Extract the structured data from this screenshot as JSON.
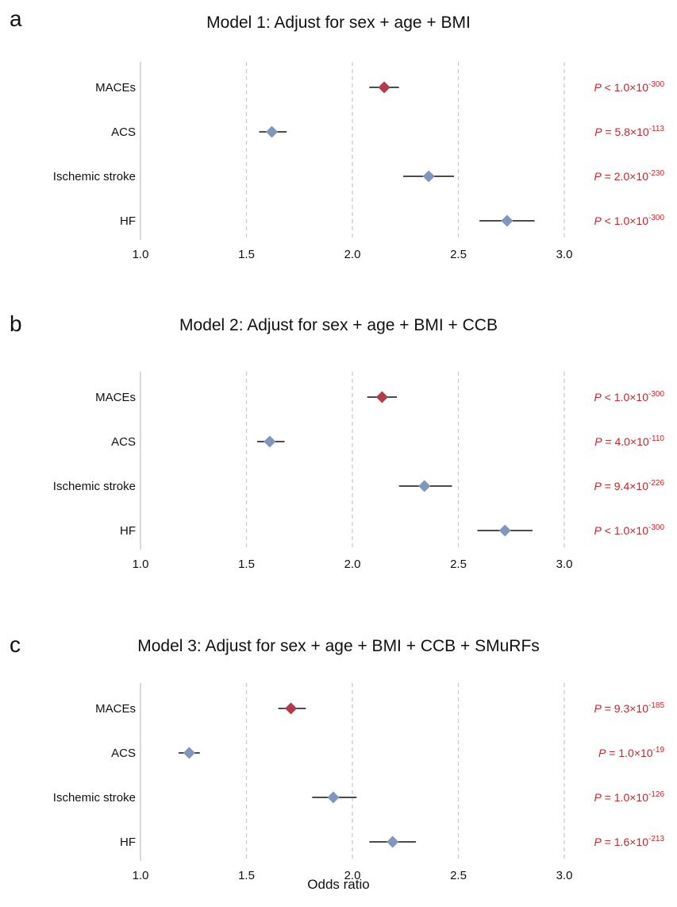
{
  "chart_data": [
    {
      "type": "forest",
      "panel_label": "a",
      "title": "Model 1: Adjust for sex + age + BMI",
      "xlim": [
        1.0,
        3.0
      ],
      "xticks": [
        "1.0",
        "1.5",
        "2.0",
        "2.5",
        "3.0"
      ],
      "grid": "dashed vertical",
      "rows": [
        {
          "label": "MACEs",
          "or": 2.15,
          "ci": [
            2.08,
            2.22
          ],
          "p_prefix": "P",
          "p_op": "<",
          "p_mantissa": "1.0",
          "p_exp": "-300",
          "color": "#b33a4c"
        },
        {
          "label": "ACS",
          "or": 1.62,
          "ci": [
            1.56,
            1.69
          ],
          "p_prefix": "P",
          "p_op": "=",
          "p_mantissa": "5.8",
          "p_exp": "-113",
          "color": "#7f96bd"
        },
        {
          "label": "Ischemic stroke",
          "or": 2.36,
          "ci": [
            2.24,
            2.48
          ],
          "p_prefix": "P",
          "p_op": "=",
          "p_mantissa": "2.0",
          "p_exp": "-230",
          "color": "#7f96bd"
        },
        {
          "label": "HF",
          "or": 2.73,
          "ci": [
            2.6,
            2.86
          ],
          "p_prefix": "P",
          "p_op": "<",
          "p_mantissa": "1.0",
          "p_exp": "-300",
          "color": "#7f96bd"
        }
      ]
    },
    {
      "type": "forest",
      "panel_label": "b",
      "title": "Model 2: Adjust for sex + age + BMI + CCB",
      "xlim": [
        1.0,
        3.0
      ],
      "xticks": [
        "1.0",
        "1.5",
        "2.0",
        "2.5",
        "3.0"
      ],
      "grid": "dashed vertical",
      "rows": [
        {
          "label": "MACEs",
          "or": 2.14,
          "ci": [
            2.07,
            2.21
          ],
          "p_prefix": "P",
          "p_op": "<",
          "p_mantissa": "1.0",
          "p_exp": "-300",
          "color": "#b33a4c"
        },
        {
          "label": "ACS",
          "or": 1.61,
          "ci": [
            1.55,
            1.68
          ],
          "p_prefix": "P",
          "p_op": "=",
          "p_mantissa": "4.0",
          "p_exp": "-110",
          "color": "#7f96bd"
        },
        {
          "label": "Ischemic stroke",
          "or": 2.34,
          "ci": [
            2.22,
            2.47
          ],
          "p_prefix": "P",
          "p_op": "=",
          "p_mantissa": "9.4",
          "p_exp": "-226",
          "color": "#7f96bd"
        },
        {
          "label": "HF",
          "or": 2.72,
          "ci": [
            2.59,
            2.85
          ],
          "p_prefix": "P",
          "p_op": "<",
          "p_mantissa": "1.0",
          "p_exp": "-300",
          "color": "#7f96bd"
        }
      ]
    },
    {
      "type": "forest",
      "panel_label": "c",
      "title": "Model 3: Adjust for sex + age + BMI + CCB + SMuRFs",
      "xlim": [
        1.0,
        3.0
      ],
      "xticks": [
        "1.0",
        "1.5",
        "2.0",
        "2.5",
        "3.0"
      ],
      "xlabel": "Odds ratio",
      "grid": "dashed vertical",
      "rows": [
        {
          "label": "MACEs",
          "or": 1.71,
          "ci": [
            1.65,
            1.78
          ],
          "p_prefix": "P",
          "p_op": "=",
          "p_mantissa": "9.3",
          "p_exp": "-185",
          "color": "#b33a4c"
        },
        {
          "label": "ACS",
          "or": 1.23,
          "ci": [
            1.18,
            1.28
          ],
          "p_prefix": "P",
          "p_op": "=",
          "p_mantissa": "1.0",
          "p_exp": "-19",
          "color": "#7f96bd"
        },
        {
          "label": "Ischemic stroke",
          "or": 1.91,
          "ci": [
            1.81,
            2.02
          ],
          "p_prefix": "P",
          "p_op": "=",
          "p_mantissa": "1.0",
          "p_exp": "-126",
          "color": "#7f96bd"
        },
        {
          "label": "HF",
          "or": 2.19,
          "ci": [
            2.08,
            2.3
          ],
          "p_prefix": "P",
          "p_op": "=",
          "p_mantissa": "1.6",
          "p_exp": "-213",
          "color": "#7f96bd"
        }
      ]
    }
  ]
}
